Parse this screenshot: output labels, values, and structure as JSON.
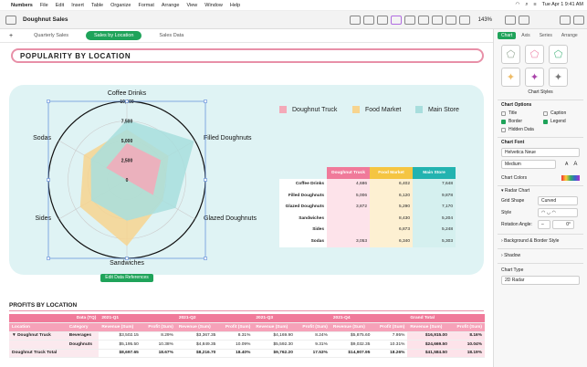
{
  "menubar": {
    "apple": "",
    "items": [
      "Numbers",
      "File",
      "Edit",
      "Insert",
      "Table",
      "Organize",
      "Format",
      "Arrange",
      "View",
      "Window",
      "Help"
    ],
    "clock": "Tue Apr 1  9:41 AM"
  },
  "toolbar": {
    "doc_title": "Doughnut Sales",
    "zoom": "143%"
  },
  "tabs": [
    "Quarterly Sales",
    "Sales by Location",
    "Sales Data"
  ],
  "active_tab": 1,
  "sheet": {
    "title": "POPULARITY BY LOCATION",
    "edit_button": "Edit Data References"
  },
  "chart_data": {
    "type": "radar",
    "categories": [
      "Coffee Drinks",
      "Filled Doughnuts",
      "Glazed Doughnuts",
      "Sandwiches",
      "Sides",
      "Sodas"
    ],
    "axis_ticks": [
      "10,000",
      "7,500",
      "5,000",
      "2,500",
      "0"
    ],
    "rmax": 10000,
    "series": [
      {
        "name": "Doughnut Truck",
        "color": "#f4a9b8",
        "values": [
          4686,
          5006,
          3872,
          0,
          0,
          3053
        ]
      },
      {
        "name": "Food Market",
        "color": "#f7d48f",
        "values": [
          6402,
          6120,
          5290,
          8430,
          6873,
          6340
        ]
      },
      {
        "name": "Main Store",
        "color": "#a8dedd",
        "values": [
          7648,
          9878,
          7170,
          5204,
          5248,
          5303
        ]
      }
    ],
    "legend_position": "top-right"
  },
  "summary_table": {
    "headers": [
      "Doughnut Truck",
      "Food Market",
      "Main Store"
    ],
    "header_colors": [
      "#f07a9a",
      "#f5c542",
      "#23b3b0"
    ],
    "cell_colors": [
      "#fde3ea",
      "#fdf0d2",
      "#d5f0ef"
    ],
    "rows": [
      {
        "label": "Coffee Drinks",
        "cells": [
          "4,686",
          "6,402",
          "7,648"
        ]
      },
      {
        "label": "Filled Doughnuts",
        "cells": [
          "5,006",
          "6,120",
          "9,878"
        ]
      },
      {
        "label": "Glazed Doughnuts",
        "cells": [
          "3,872",
          "5,290",
          "7,170"
        ]
      },
      {
        "label": "Sandwiches",
        "cells": [
          "",
          "8,430",
          "5,204"
        ]
      },
      {
        "label": "Sides",
        "cells": [
          "",
          "6,873",
          "5,248"
        ]
      },
      {
        "label": "Sodas",
        "cells": [
          "3,053",
          "6,340",
          "5,303"
        ]
      }
    ]
  },
  "pivot": {
    "title": "PROFITS BY LOCATION",
    "r1": [
      "Data (TQ)",
      "2021-Q1",
      "2021-Q2",
      "2021-Q3",
      "2021-Q4",
      "Grand Total"
    ],
    "r2": [
      "Location",
      "Category",
      "Revenue (Sum)",
      "Profit (Sum)",
      "Revenue (Sum)",
      "Profit (Sum)",
      "Revenue (Sum)",
      "Profit (Sum)",
      "Revenue (Sum)",
      "Profit (Sum)",
      "Revenue (Sum)",
      "Profit (Sum)"
    ],
    "rows": [
      [
        "▼ Doughnut Truck",
        "Beverages",
        "$3,502.15",
        "8.29%",
        "$3,367.35",
        "8.31%",
        "$4,169.90",
        "8.24%",
        "$5,875.60",
        "7.95%",
        "$16,915.00",
        "8.16%"
      ],
      [
        "",
        "Doughnuts",
        "$5,195.50",
        "10.38%",
        "$4,849.35",
        "10.09%",
        "$5,592.30",
        "9.31%",
        "$9,032.35",
        "10.31%",
        "$24,669.50",
        "10.04%"
      ],
      [
        "Doughnut Truck Total",
        "",
        "$8,697.65",
        "18.67%",
        "$8,216.70",
        "18.40%",
        "$9,762.20",
        "17.53%",
        "$14,907.95",
        "18.26%",
        "$41,584.50",
        "18.19%"
      ]
    ]
  },
  "inspector": {
    "tabs": [
      "Chart",
      "Axis",
      "Series",
      "Arrange"
    ],
    "chart_styles": "Chart Styles",
    "chart_options": "Chart Options",
    "options": [
      {
        "label": "Title",
        "on": false
      },
      {
        "label": "Caption",
        "on": false
      },
      {
        "label": "Border",
        "on": true
      },
      {
        "label": "Legend",
        "on": true
      },
      {
        "label": "Hidden Data",
        "on": false
      }
    ],
    "chart_font": "Chart Font",
    "font_name": "Helvetica Neue",
    "font_weight": "Medium",
    "chart_colors": "Chart Colors",
    "radar_chart": "Radar Chart",
    "grid_shape_label": "Grid Shape",
    "grid_shape": "Curved",
    "style_label": "Style",
    "rotation_label": "Rotation Angle:",
    "rotation_value": "0°",
    "bg_border": "Background & Border Style",
    "shadow": "Shadow",
    "chart_type_label": "Chart Type",
    "chart_type": "2D Radar"
  }
}
